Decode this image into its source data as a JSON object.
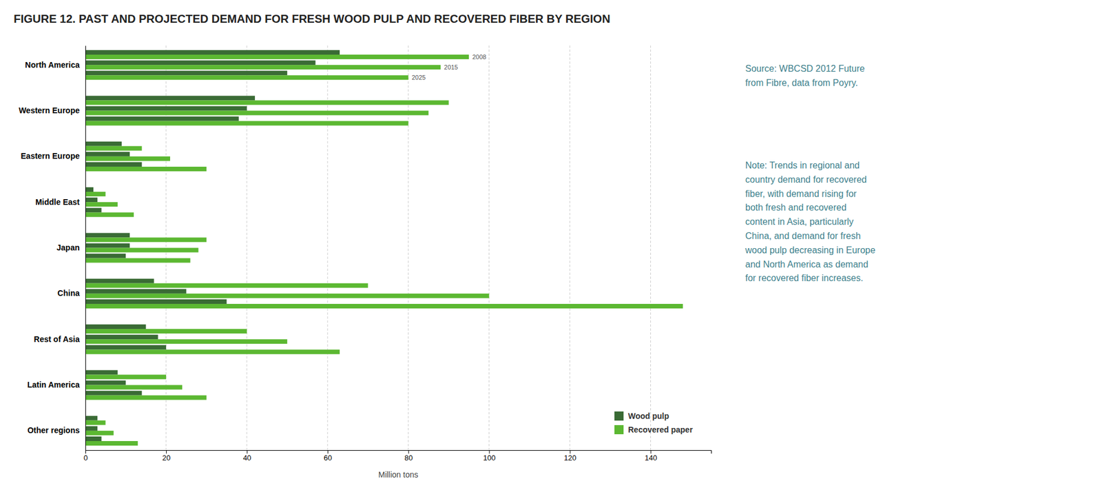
{
  "chart_data": {
    "type": "bar",
    "orientation": "horizontal",
    "title": "FIGURE 12. PAST AND PROJECTED DEMAND FOR FRESH WOOD PULP AND RECOVERED FIBER BY REGION",
    "categories": [
      "North America",
      "Western Europe",
      "Eastern Europe",
      "Middle East",
      "Japan",
      "China",
      "Rest of Asia",
      "Latin America",
      "Other regions"
    ],
    "series": [
      {
        "name": "Wood pulp",
        "color": "#3a6b35",
        "values": [
          [
            63,
            57,
            50
          ],
          [
            42,
            40,
            38
          ],
          [
            9,
            11,
            14
          ],
          [
            2,
            3,
            4
          ],
          [
            11,
            11,
            10
          ],
          [
            17,
            25,
            35
          ],
          [
            15,
            18,
            20
          ],
          [
            8,
            10,
            14
          ],
          [
            3,
            3,
            4
          ]
        ]
      },
      {
        "name": "Recovered paper",
        "color": "#5cb832",
        "values": [
          [
            95,
            88,
            80
          ],
          [
            90,
            85,
            80
          ],
          [
            14,
            21,
            30
          ],
          [
            5,
            8,
            12
          ],
          [
            30,
            28,
            26
          ],
          [
            70,
            100,
            148
          ],
          [
            40,
            50,
            63
          ],
          [
            20,
            24,
            30
          ],
          [
            5,
            7,
            13
          ]
        ]
      }
    ],
    "annotations": [
      "2008",
      "2015",
      "2025"
    ],
    "xlabel": "Million tons",
    "xlim": [
      0,
      155
    ],
    "xticks": [
      0,
      20,
      40,
      60,
      80,
      100,
      120,
      140
    ],
    "grid": true,
    "legend": "lower right",
    "source": "Source: WBCSD 2012 Future\nfrom Fibre, data from Poyry.",
    "note": "Note: Trends in regional and\ncountry demand for recovered\nfiber, with demand rising for\nboth fresh and recovered\ncontent in Asia, particularly\nChina, and demand for fresh\nwood pulp decreasing in Europe\nand North America as demand\nfor recovered fiber increases."
  }
}
